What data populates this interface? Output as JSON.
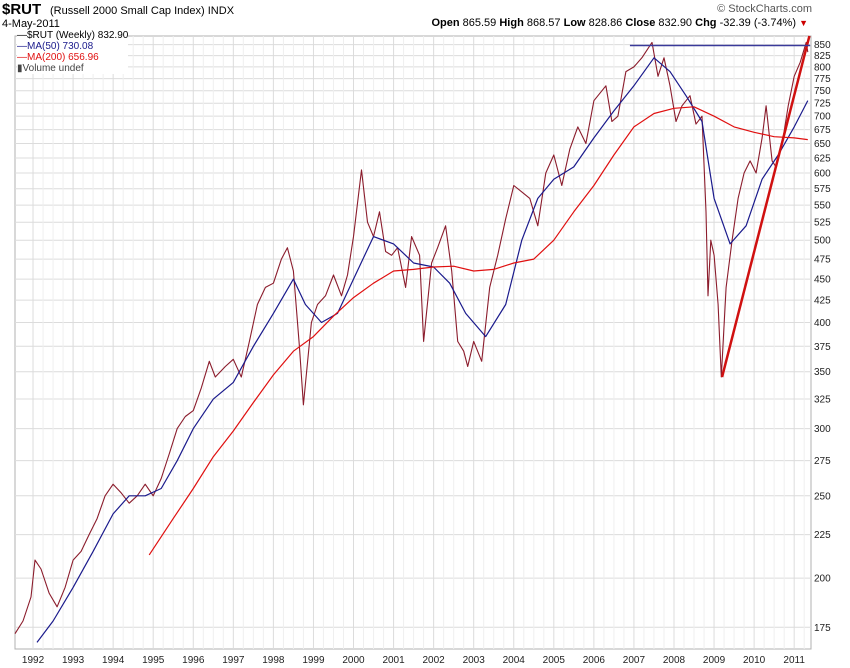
{
  "header": {
    "symbol": "$RUT",
    "name": "(Russell 2000 Small Cap Index)",
    "exchange": "INDX",
    "date": "4-May-2011",
    "brand": "© StockCharts.com",
    "open_label": "Open",
    "open": "865.59",
    "high_label": "High",
    "high": "868.57",
    "low_label": "Low",
    "low": "828.86",
    "close_label": "Close",
    "close": "832.90",
    "chg_label": "Chg",
    "chg": "-32.39 (-3.74%)"
  },
  "legend": {
    "price": "$RUT (Weekly) 832.90",
    "ma50": "MA(50) 730.08",
    "ma200": "MA(200) 656.96",
    "volume": "Volume undef"
  },
  "colors": {
    "price": "#8b1c2c",
    "ma50": "#1a1a8c",
    "ma200": "#e01010",
    "trend": "#d01010",
    "resistance": "#3a3a9a",
    "grid": "#dcdcdc"
  },
  "chart_data": {
    "type": "line",
    "scale": "log",
    "ylim": [
      165,
      870
    ],
    "xlim": [
      1991.55,
      2011.42
    ],
    "y_ticks": [
      175,
      200,
      225,
      250,
      275,
      300,
      325,
      350,
      375,
      400,
      425,
      450,
      475,
      500,
      525,
      550,
      575,
      600,
      625,
      650,
      675,
      700,
      725,
      750,
      775,
      800,
      825,
      850
    ],
    "x_ticks": [
      {
        "label": "1992",
        "x": 1992.0
      },
      {
        "label": "1993",
        "x": 1993.0
      },
      {
        "label": "1994",
        "x": 1994.0
      },
      {
        "label": "1995",
        "x": 1995.0
      },
      {
        "label": "1996",
        "x": 1996.0
      },
      {
        "label": "1997",
        "x": 1997.0
      },
      {
        "label": "1998",
        "x": 1998.0
      },
      {
        "label": "1999",
        "x": 1999.0
      },
      {
        "label": "2000",
        "x": 2000.0
      },
      {
        "label": "2001",
        "x": 2001.0
      },
      {
        "label": "2002",
        "x": 2002.0
      },
      {
        "label": "2003",
        "x": 2003.0
      },
      {
        "label": "2004",
        "x": 2004.0
      },
      {
        "label": "2005",
        "x": 2005.0
      },
      {
        "label": "2006",
        "x": 2006.0
      },
      {
        "label": "2007",
        "x": 2007.0
      },
      {
        "label": "2008",
        "x": 2008.0
      },
      {
        "label": "2009",
        "x": 2009.0
      },
      {
        "label": "2010",
        "x": 2010.0
      },
      {
        "label": "2011",
        "x": 2011.0
      }
    ],
    "series": [
      {
        "key": "price",
        "name": "$RUT (Weekly)",
        "points": [
          [
            1991.55,
            172
          ],
          [
            1991.75,
            178
          ],
          [
            1991.95,
            190
          ],
          [
            1992.05,
            210
          ],
          [
            1992.2,
            205
          ],
          [
            1992.4,
            192
          ],
          [
            1992.6,
            185
          ],
          [
            1992.8,
            195
          ],
          [
            1993.0,
            210
          ],
          [
            1993.2,
            215
          ],
          [
            1993.4,
            225
          ],
          [
            1993.6,
            235
          ],
          [
            1993.8,
            250
          ],
          [
            1994.0,
            258
          ],
          [
            1994.2,
            252
          ],
          [
            1994.4,
            245
          ],
          [
            1994.6,
            250
          ],
          [
            1994.8,
            258
          ],
          [
            1995.0,
            250
          ],
          [
            1995.2,
            262
          ],
          [
            1995.4,
            280
          ],
          [
            1995.6,
            300
          ],
          [
            1995.8,
            310
          ],
          [
            1996.0,
            315
          ],
          [
            1996.2,
            335
          ],
          [
            1996.4,
            360
          ],
          [
            1996.55,
            345
          ],
          [
            1996.8,
            355
          ],
          [
            1997.0,
            362
          ],
          [
            1997.2,
            345
          ],
          [
            1997.4,
            380
          ],
          [
            1997.6,
            420
          ],
          [
            1997.8,
            440
          ],
          [
            1998.0,
            445
          ],
          [
            1998.2,
            475
          ],
          [
            1998.35,
            490
          ],
          [
            1998.5,
            460
          ],
          [
            1998.65,
            375
          ],
          [
            1998.75,
            320
          ],
          [
            1998.95,
            400
          ],
          [
            1999.1,
            420
          ],
          [
            1999.3,
            430
          ],
          [
            1999.5,
            455
          ],
          [
            1999.7,
            430
          ],
          [
            1999.85,
            455
          ],
          [
            2000.0,
            505
          ],
          [
            2000.2,
            605
          ],
          [
            2000.35,
            525
          ],
          [
            2000.5,
            505
          ],
          [
            2000.65,
            540
          ],
          [
            2000.8,
            485
          ],
          [
            2000.95,
            480
          ],
          [
            2001.1,
            490
          ],
          [
            2001.3,
            440
          ],
          [
            2001.45,
            505
          ],
          [
            2001.65,
            480
          ],
          [
            2001.75,
            380
          ],
          [
            2001.95,
            470
          ],
          [
            2002.1,
            490
          ],
          [
            2002.3,
            520
          ],
          [
            2002.45,
            460
          ],
          [
            2002.6,
            380
          ],
          [
            2002.75,
            370
          ],
          [
            2002.85,
            355
          ],
          [
            2003.0,
            380
          ],
          [
            2003.2,
            360
          ],
          [
            2003.4,
            440
          ],
          [
            2003.6,
            480
          ],
          [
            2003.8,
            530
          ],
          [
            2004.0,
            580
          ],
          [
            2004.2,
            570
          ],
          [
            2004.4,
            560
          ],
          [
            2004.6,
            520
          ],
          [
            2004.8,
            600
          ],
          [
            2005.0,
            630
          ],
          [
            2005.2,
            580
          ],
          [
            2005.4,
            640
          ],
          [
            2005.6,
            680
          ],
          [
            2005.8,
            650
          ],
          [
            2006.0,
            730
          ],
          [
            2006.3,
            760
          ],
          [
            2006.45,
            690
          ],
          [
            2006.6,
            700
          ],
          [
            2006.8,
            790
          ],
          [
            2007.0,
            800
          ],
          [
            2007.2,
            820
          ],
          [
            2007.45,
            855
          ],
          [
            2007.6,
            780
          ],
          [
            2007.75,
            820
          ],
          [
            2007.9,
            760
          ],
          [
            2008.05,
            690
          ],
          [
            2008.2,
            720
          ],
          [
            2008.4,
            740
          ],
          [
            2008.55,
            685
          ],
          [
            2008.7,
            700
          ],
          [
            2008.8,
            540
          ],
          [
            2008.85,
            430
          ],
          [
            2008.92,
            500
          ],
          [
            2009.0,
            480
          ],
          [
            2009.1,
            420
          ],
          [
            2009.18,
            345
          ],
          [
            2009.3,
            440
          ],
          [
            2009.45,
            500
          ],
          [
            2009.6,
            560
          ],
          [
            2009.75,
            600
          ],
          [
            2009.9,
            620
          ],
          [
            2010.05,
            600
          ],
          [
            2010.2,
            660
          ],
          [
            2010.3,
            720
          ],
          [
            2010.45,
            620
          ],
          [
            2010.55,
            610
          ],
          [
            2010.7,
            650
          ],
          [
            2010.85,
            720
          ],
          [
            2011.0,
            780
          ],
          [
            2011.15,
            810
          ],
          [
            2011.3,
            855
          ],
          [
            2011.34,
            832.9
          ]
        ]
      },
      {
        "key": "ma50",
        "name": "MA(50)",
        "points": [
          [
            1992.1,
            168
          ],
          [
            1992.5,
            178
          ],
          [
            1993.0,
            195
          ],
          [
            1993.5,
            215
          ],
          [
            1994.0,
            238
          ],
          [
            1994.4,
            250
          ],
          [
            1994.8,
            250
          ],
          [
            1995.2,
            255
          ],
          [
            1995.6,
            275
          ],
          [
            1996.0,
            300
          ],
          [
            1996.5,
            325
          ],
          [
            1997.0,
            340
          ],
          [
            1997.5,
            375
          ],
          [
            1998.0,
            410
          ],
          [
            1998.5,
            450
          ],
          [
            1998.8,
            420
          ],
          [
            1999.2,
            400
          ],
          [
            1999.6,
            410
          ],
          [
            2000.0,
            450
          ],
          [
            2000.5,
            505
          ],
          [
            2001.0,
            495
          ],
          [
            2001.5,
            470
          ],
          [
            2002.0,
            465
          ],
          [
            2002.4,
            445
          ],
          [
            2002.8,
            410
          ],
          [
            2003.3,
            385
          ],
          [
            2003.8,
            420
          ],
          [
            2004.2,
            500
          ],
          [
            2004.6,
            560
          ],
          [
            2005.0,
            590
          ],
          [
            2005.5,
            610
          ],
          [
            2006.0,
            660
          ],
          [
            2006.5,
            710
          ],
          [
            2007.0,
            760
          ],
          [
            2007.5,
            820
          ],
          [
            2007.9,
            790
          ],
          [
            2008.3,
            740
          ],
          [
            2008.7,
            690
          ],
          [
            2009.0,
            560
          ],
          [
            2009.4,
            495
          ],
          [
            2009.8,
            520
          ],
          [
            2010.2,
            590
          ],
          [
            2010.6,
            630
          ],
          [
            2011.0,
            680
          ],
          [
            2011.34,
            730.08
          ]
        ]
      },
      {
        "key": "ma200",
        "name": "MA(200)",
        "points": [
          [
            1994.9,
            213
          ],
          [
            1995.5,
            235
          ],
          [
            1996.0,
            255
          ],
          [
            1996.5,
            278
          ],
          [
            1997.0,
            298
          ],
          [
            1997.5,
            322
          ],
          [
            1998.0,
            347
          ],
          [
            1998.5,
            370
          ],
          [
            1999.0,
            385
          ],
          [
            1999.5,
            407
          ],
          [
            2000.0,
            428
          ],
          [
            2000.5,
            445
          ],
          [
            2001.0,
            460
          ],
          [
            2001.5,
            462
          ],
          [
            2002.0,
            465
          ],
          [
            2002.5,
            466
          ],
          [
            2003.0,
            460
          ],
          [
            2003.5,
            462
          ],
          [
            2004.0,
            470
          ],
          [
            2004.5,
            475
          ],
          [
            2005.0,
            500
          ],
          [
            2005.5,
            540
          ],
          [
            2006.0,
            580
          ],
          [
            2006.5,
            630
          ],
          [
            2007.0,
            680
          ],
          [
            2007.5,
            705
          ],
          [
            2008.0,
            715
          ],
          [
            2008.5,
            718
          ],
          [
            2009.0,
            700
          ],
          [
            2009.5,
            680
          ],
          [
            2010.0,
            670
          ],
          [
            2010.5,
            662
          ],
          [
            2011.0,
            660
          ],
          [
            2011.34,
            656.96
          ]
        ]
      }
    ],
    "annotations": {
      "trendline": [
        [
          2009.2,
          345
        ],
        [
          2011.38,
          870
        ]
      ],
      "resistance": {
        "y": 848,
        "x": [
          2006.9,
          2011.4
        ]
      }
    }
  }
}
